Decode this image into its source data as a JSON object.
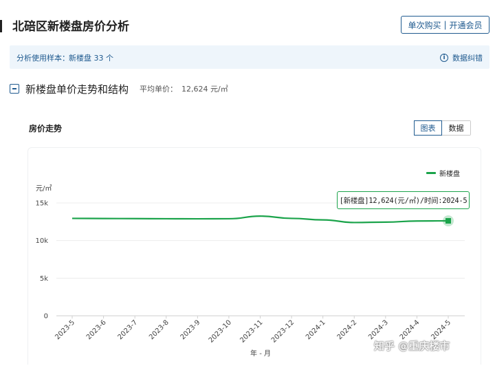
{
  "header": {
    "title": "北碚区新楼盘房价分析",
    "buy_once": "单次购买",
    "separator": "|",
    "membership": "开通会员"
  },
  "sample": {
    "label": "分析使用样本：",
    "value": "新楼盘 33 个",
    "correct_link": "数据纠错",
    "info_glyph": "i"
  },
  "section": {
    "title": "新楼盘单价走势和结构",
    "avg_label": "平均单价：",
    "avg_value": "12,624 元/㎡"
  },
  "chart_panel": {
    "title": "房价走势",
    "tabs": [
      "图表",
      "数据"
    ],
    "active_tab": 0
  },
  "tooltip": {
    "text": "[新楼盘]12,624(元/㎡)/时间:2024-5"
  },
  "watermark": "知乎 @重庆楼市",
  "colors": {
    "accent": "#1f5a8f",
    "series": "#1aa34a",
    "panel_bg": "#eef5fb"
  },
  "chart_data": {
    "type": "line",
    "categories": [
      "2023-5",
      "2023-6",
      "2023-7",
      "2023-8",
      "2023-9",
      "2023-10",
      "2023-11",
      "2023-12",
      "2024-1",
      "2024-2",
      "2024-3",
      "2024-4",
      "2024-5"
    ],
    "series": [
      {
        "name": "新楼盘",
        "values": [
          12950,
          12930,
          12920,
          12900,
          12890,
          12900,
          13250,
          12950,
          12750,
          12400,
          12450,
          12600,
          12624
        ]
      }
    ],
    "ylabel": "元/㎡",
    "xlabel": "年 - 月",
    "ylim": [
      0,
      15000
    ],
    "yticks": [
      0,
      5000,
      10000,
      15000
    ],
    "ytick_labels": [
      "0",
      "5k",
      "10k",
      "15k"
    ],
    "grid": true,
    "legend": "top-right",
    "highlight_index": 12
  }
}
